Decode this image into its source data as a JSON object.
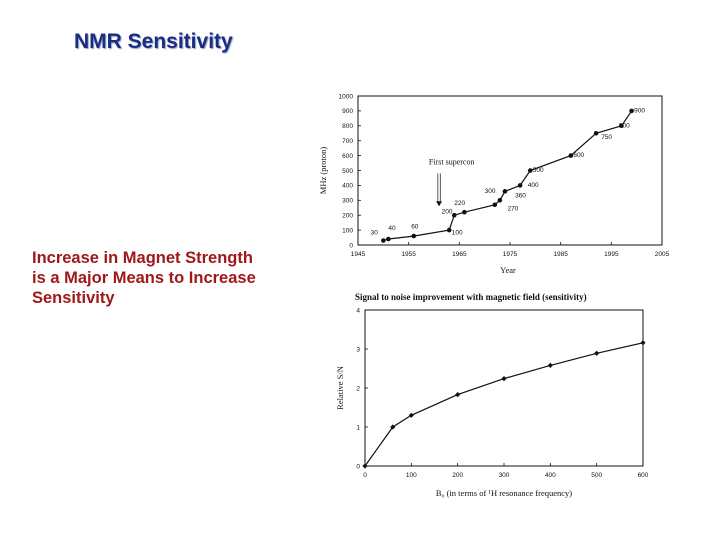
{
  "slide": {
    "title": "NMR Sensitivity",
    "text_lines": [
      "Increase in Magnet Strength",
      "is a Major Means to Increase",
      "Sensitivity"
    ]
  },
  "colors": {
    "title": "#1a2d86",
    "body_text": "#a01818",
    "plot_ink": "#111111"
  },
  "chart_data": [
    {
      "type": "line",
      "title": "",
      "xlabel": "Year",
      "ylabel": "MHz (proton)",
      "xlim": [
        1945,
        2005
      ],
      "ylim": [
        0,
        1000
      ],
      "x_ticks": [
        1945,
        1955,
        1965,
        1975,
        1985,
        1995,
        2005
      ],
      "y_ticks": [
        0,
        100,
        200,
        300,
        400,
        500,
        600,
        700,
        800,
        900,
        1000
      ],
      "x": [
        1950,
        1951,
        1956,
        1963,
        1964,
        1966,
        1972,
        1973,
        1974,
        1977,
        1979,
        1987,
        1992,
        1997,
        1999
      ],
      "y": [
        30,
        40,
        60,
        100,
        200,
        220,
        270,
        300,
        360,
        400,
        500,
        600,
        750,
        800,
        900
      ],
      "point_labels": [
        {
          "text": "30",
          "x": 1947.5,
          "y": 70
        },
        {
          "text": "40",
          "x": 1951,
          "y": 100
        },
        {
          "text": "60",
          "x": 1955.5,
          "y": 110
        },
        {
          "text": "100",
          "x": 1963.5,
          "y": 70
        },
        {
          "text": "200",
          "x": 1961.5,
          "y": 210
        },
        {
          "text": "220",
          "x": 1964,
          "y": 270
        },
        {
          "text": "270",
          "x": 1974.5,
          "y": 230
        },
        {
          "text": "300",
          "x": 1970,
          "y": 350
        },
        {
          "text": "360",
          "x": 1976,
          "y": 320
        },
        {
          "text": "400",
          "x": 1978.5,
          "y": 390
        },
        {
          "text": "500",
          "x": 1979.5,
          "y": 490
        },
        {
          "text": "600",
          "x": 1987.5,
          "y": 590
        },
        {
          "text": "750",
          "x": 1993,
          "y": 710
        },
        {
          "text": "800",
          "x": 1996.5,
          "y": 790
        },
        {
          "text": "900",
          "x": 1999.5,
          "y": 890
        }
      ],
      "annotations": [
        {
          "text": "First supercon",
          "x": 1959,
          "y": 540,
          "arrow_to": [
            1961,
            260
          ]
        }
      ]
    },
    {
      "type": "line",
      "title": "Signal to noise improvement with magnetic field (sensitivity)",
      "xlabel": "B₀ (in terms of ¹H resonance frequency)",
      "ylabel": "Relative S/N",
      "xlim": [
        0,
        600
      ],
      "ylim": [
        0,
        4
      ],
      "x_ticks": [
        0,
        100,
        200,
        300,
        400,
        500,
        600
      ],
      "y_ticks": [
        0,
        1,
        2,
        3,
        4
      ],
      "x": [
        0,
        60,
        100,
        200,
        300,
        400,
        500,
        600
      ],
      "y": [
        0,
        1.0,
        1.3,
        1.83,
        2.24,
        2.58,
        2.89,
        3.16
      ]
    }
  ]
}
